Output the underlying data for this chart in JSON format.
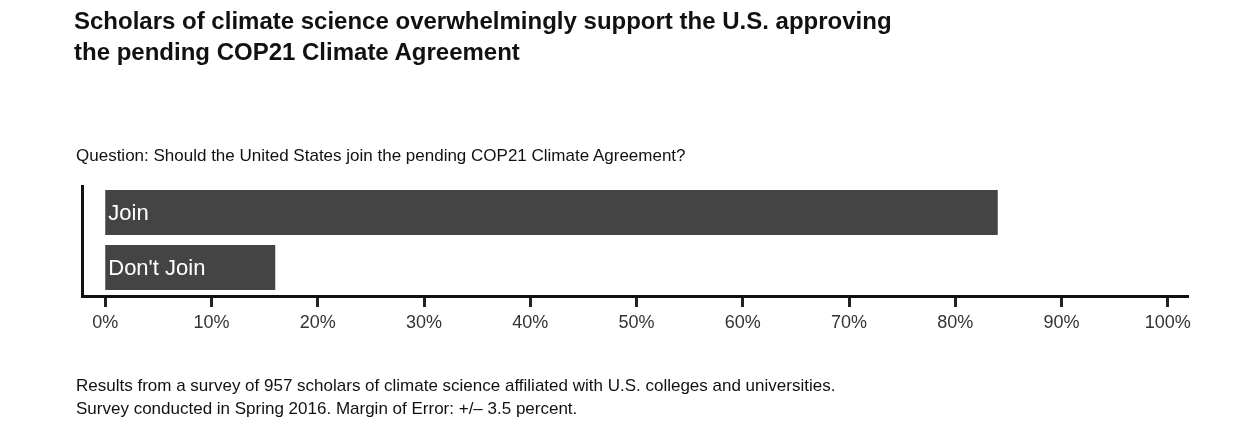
{
  "chart_data": {
    "type": "bar",
    "orientation": "horizontal",
    "title": "Scholars of climate science overwhelmingly support the U.S. approving\nthe pending COP21 Climate Agreement",
    "subtitle": "Question: Should the United States join the pending COP21 Climate Agreement?",
    "categories": [
      "Join",
      "Don't Join"
    ],
    "values": [
      84,
      16
    ],
    "color": "#444444",
    "xlim": [
      -2,
      102
    ],
    "xticks": [
      {
        "value": 0,
        "label": "0%"
      },
      {
        "value": 10,
        "label": "10%"
      },
      {
        "value": 20,
        "label": "20%"
      },
      {
        "value": 30,
        "label": "30%"
      },
      {
        "value": 40,
        "label": "40%"
      },
      {
        "value": 50,
        "label": "50%"
      },
      {
        "value": 60,
        "label": "60%"
      },
      {
        "value": 70,
        "label": "70%"
      },
      {
        "value": 80,
        "label": "80%"
      },
      {
        "value": 90,
        "label": "90%"
      },
      {
        "value": 100,
        "label": "100%"
      }
    ],
    "annotations": [
      "Results from a survey of 957 scholars of climate science affiliated with U.S. colleges and universities.",
      "Survey conducted in Spring 2016. Margin of Error: +/– 3.5 percent."
    ],
    "legend": false
  }
}
